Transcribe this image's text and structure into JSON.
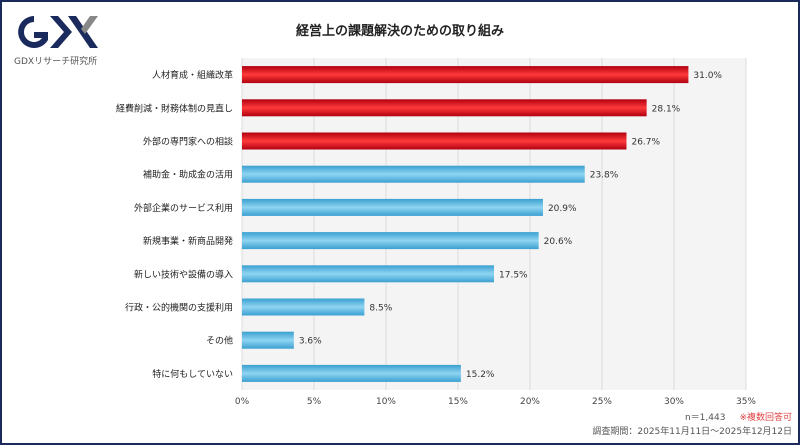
{
  "logo": {
    "text": "GDX",
    "subtitle": "GDXリサーチ研究所"
  },
  "chart_data": {
    "type": "bar",
    "orientation": "horizontal",
    "title": "経営上の課題解決のための取り組み",
    "categories": [
      "人材育成・組織改革",
      "経費削減・財務体制の見直し",
      "外部の専門家への相談",
      "補助金・助成金の活用",
      "外部企業のサービス利用",
      "新規事業・新商品開発",
      "新しい技術や設備の導入",
      "行政・公的機関の支援利用",
      "その他",
      "特に何もしていない"
    ],
    "values": [
      31.0,
      28.1,
      26.7,
      23.8,
      20.9,
      20.6,
      17.5,
      8.5,
      3.6,
      15.2
    ],
    "value_labels": [
      "31.0%",
      "28.1%",
      "26.7%",
      "23.8%",
      "20.9%",
      "20.6%",
      "17.5%",
      "8.5%",
      "3.6%",
      "15.2%"
    ],
    "highlighted_top": 3,
    "colors": {
      "highlight": "#e8101a",
      "normal": "#4ab3e0"
    },
    "xlim": [
      0,
      35
    ],
    "xticks": [
      "0%",
      "5%",
      "10%",
      "15%",
      "20%",
      "25%",
      "30%",
      "35%"
    ],
    "grid": true
  },
  "footer": {
    "n": "n＝1,443",
    "note": "※複数回答可",
    "period": "調査期間：2025年11月11日～2025年12月12日"
  }
}
